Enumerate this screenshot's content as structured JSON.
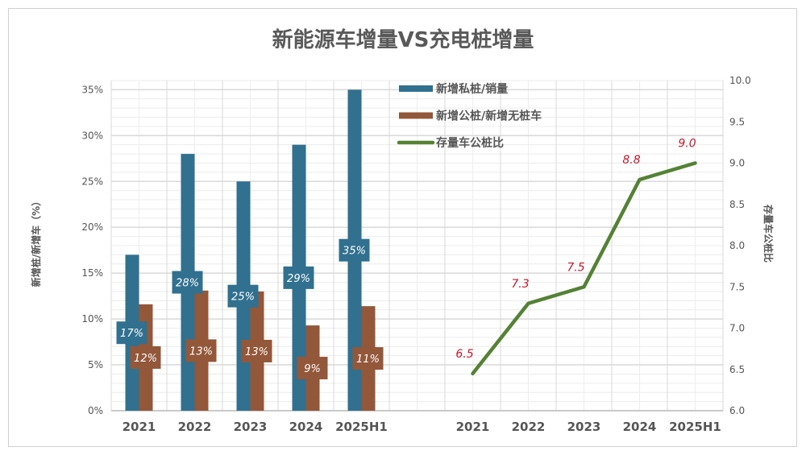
{
  "chart_data": {
    "type": "bar+line",
    "title": "新能源车增量VS充电桩增量",
    "ylabel_left": "新增桩/新增车（%）",
    "ylabel_right": "存量车公桩比",
    "ylim_left": [
      0,
      36
    ],
    "yticks_left": [
      "0%",
      "5%",
      "10%",
      "15%",
      "20%",
      "25%",
      "30%",
      "35%"
    ],
    "ylim_right": [
      6.0,
      10.0
    ],
    "yticks_right": [
      "6.0",
      "6.5",
      "7.0",
      "7.5",
      "8.0",
      "8.5",
      "9.0",
      "9.5",
      "10.0"
    ],
    "categories": [
      "2021",
      "2022",
      "2023",
      "2024",
      "2025H1"
    ],
    "grid": true,
    "legend_position": "top-center",
    "series": [
      {
        "name": "新增私桩/销量",
        "type": "bar",
        "color": "#31708f",
        "values": [
          17,
          28,
          25,
          29,
          35
        ],
        "labels": [
          "17%",
          "28%",
          "25%",
          "29%",
          "35%"
        ]
      },
      {
        "name": "新增公桩/新增无桩车",
        "type": "bar",
        "color": "#93573a",
        "values": [
          11.6,
          13.1,
          13,
          9.3,
          11.4
        ],
        "labels": [
          "12%",
          "13%",
          "13%",
          "9%",
          "11%"
        ]
      },
      {
        "name": "存量车公桩比",
        "type": "line",
        "color": "#548235",
        "values": [
          6.45,
          7.3,
          7.5,
          8.8,
          9.0
        ],
        "labels": [
          "6.5",
          "7.3",
          "7.5",
          "8.8",
          "9.0"
        ],
        "label_color": "#c0192b"
      }
    ]
  }
}
